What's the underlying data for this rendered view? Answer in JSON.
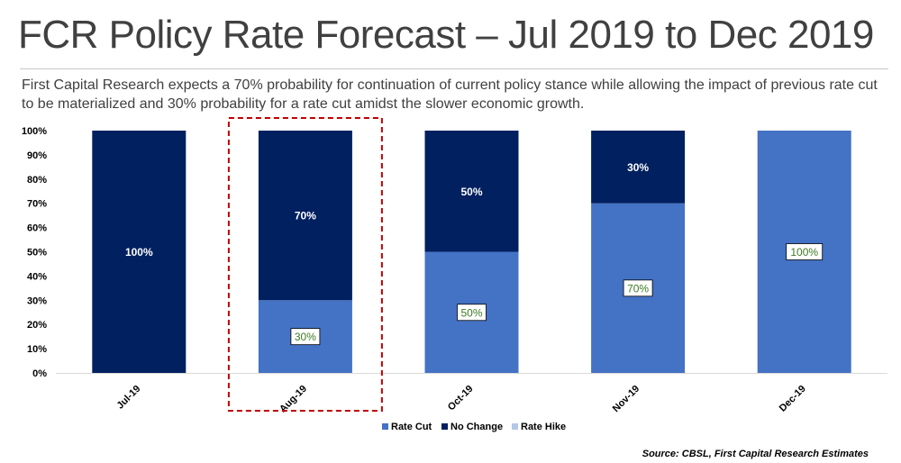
{
  "title": "FCR Policy Rate Forecast – Jul 2019 to Dec 2019",
  "subtitle": "First Capital Research expects a 70% probability for continuation of current policy stance while allowing the impact of previous rate cut to be materialized and 30% probability for a rate cut amidst the slower economic growth.",
  "source": "Source: CBSL, First Capital Research Estimates",
  "colors": {
    "rate_cut": "#4472C4",
    "no_change": "#002060",
    "rate_hike": "#B4C7E7",
    "highlight": "#C00000",
    "cut_label_text": "#3D7A22"
  },
  "chart_data": {
    "type": "bar",
    "stacked": true,
    "categories": [
      "Jul-19",
      "Aug-19",
      "Oct-19",
      "Nov-19",
      "Dec-19"
    ],
    "series": [
      {
        "name": "Rate Cut",
        "values": [
          0,
          30,
          50,
          70,
          100
        ]
      },
      {
        "name": "No Change",
        "values": [
          100,
          70,
          50,
          30,
          0
        ]
      },
      {
        "name": "Rate Hike",
        "values": [
          0,
          0,
          0,
          0,
          0
        ]
      }
    ],
    "data_labels": {
      "Rate Cut": [
        "",
        "30%",
        "50%",
        "70%",
        "100%"
      ],
      "No Change": [
        "100%",
        "70%",
        "50%",
        "30%",
        ""
      ]
    },
    "ylim": [
      0,
      100
    ],
    "yticks": [
      "0%",
      "10%",
      "20%",
      "30%",
      "40%",
      "50%",
      "60%",
      "70%",
      "80%",
      "90%",
      "100%"
    ],
    "legend_position": "bottom",
    "highlighted_category": "Aug-19"
  }
}
